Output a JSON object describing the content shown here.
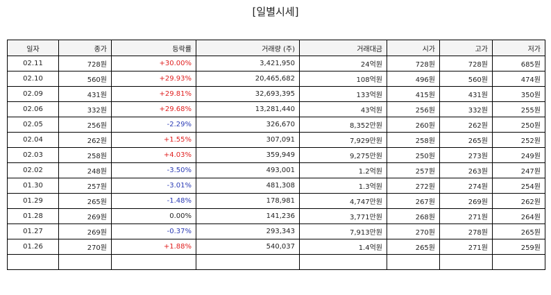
{
  "title": "[일별시세]",
  "columns": [
    "일자",
    "종가",
    "등락률",
    "거래량 (주)",
    "거래대금",
    "시가",
    "고가",
    "저가"
  ],
  "colors": {
    "up": "#e02020",
    "down": "#2a3bb5",
    "flat": "#222222"
  },
  "rows": [
    {
      "date": "02.11",
      "close": "728원",
      "change": "+30.00%",
      "dir": "up",
      "volume": "3,421,950",
      "amount": "24억원",
      "open": "728원",
      "high": "728원",
      "low": "685원"
    },
    {
      "date": "02.10",
      "close": "560원",
      "change": "+29.93%",
      "dir": "up",
      "volume": "20,465,682",
      "amount": "108억원",
      "open": "496원",
      "high": "560원",
      "low": "474원"
    },
    {
      "date": "02.09",
      "close": "431원",
      "change": "+29.81%",
      "dir": "up",
      "volume": "32,693,395",
      "amount": "133억원",
      "open": "415원",
      "high": "431원",
      "low": "350원"
    },
    {
      "date": "02.06",
      "close": "332원",
      "change": "+29.68%",
      "dir": "up",
      "volume": "13,281,440",
      "amount": "43억원",
      "open": "256원",
      "high": "332원",
      "low": "255원"
    },
    {
      "date": "02.05",
      "close": "256원",
      "change": "-2.29%",
      "dir": "down",
      "volume": "326,670",
      "amount": "8,352만원",
      "open": "260원",
      "high": "262원",
      "low": "250원"
    },
    {
      "date": "02.04",
      "close": "262원",
      "change": "+1.55%",
      "dir": "up",
      "volume": "307,091",
      "amount": "7,929만원",
      "open": "258원",
      "high": "265원",
      "low": "252원"
    },
    {
      "date": "02.03",
      "close": "258원",
      "change": "+4.03%",
      "dir": "up",
      "volume": "359,949",
      "amount": "9,275만원",
      "open": "250원",
      "high": "273원",
      "low": "249원"
    },
    {
      "date": "02.02",
      "close": "248원",
      "change": "-3.50%",
      "dir": "down",
      "volume": "493,001",
      "amount": "1.2억원",
      "open": "257원",
      "high": "263원",
      "low": "247원"
    },
    {
      "date": "01.30",
      "close": "257원",
      "change": "-3.01%",
      "dir": "down",
      "volume": "481,308",
      "amount": "1.3억원",
      "open": "272원",
      "high": "274원",
      "low": "254원"
    },
    {
      "date": "01.29",
      "close": "265원",
      "change": "-1.48%",
      "dir": "down",
      "volume": "178,981",
      "amount": "4,747만원",
      "open": "267원",
      "high": "269원",
      "low": "262원"
    },
    {
      "date": "01.28",
      "close": "269원",
      "change": "0.00%",
      "dir": "flat",
      "volume": "141,236",
      "amount": "3,771만원",
      "open": "268원",
      "high": "271원",
      "low": "264원"
    },
    {
      "date": "01.27",
      "close": "269원",
      "change": "-0.37%",
      "dir": "down",
      "volume": "293,343",
      "amount": "7,913만원",
      "open": "270원",
      "high": "278원",
      "low": "265원"
    },
    {
      "date": "01.26",
      "close": "270원",
      "change": "+1.88%",
      "dir": "up",
      "volume": "540,037",
      "amount": "1.4억원",
      "open": "265원",
      "high": "271원",
      "low": "259원"
    },
    {
      "date": "",
      "close": "",
      "change": "",
      "dir": "flat",
      "volume": "",
      "amount": "",
      "open": "",
      "high": "",
      "low": ""
    }
  ]
}
